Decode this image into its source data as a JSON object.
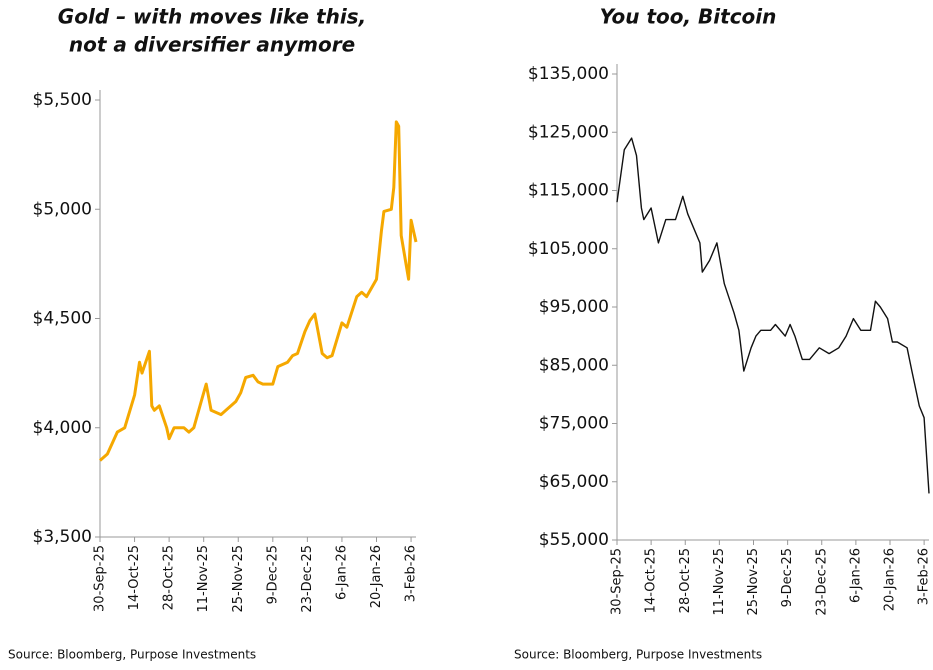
{
  "chart_data": [
    {
      "type": "line",
      "title": [
        "Gold – with moves like this,",
        "not a diversifier anymore"
      ],
      "source": "Source: Bloomberg, Purpose Investments",
      "xlim": [
        "2025-09-30",
        "2026-02-05"
      ],
      "xticks": [
        {
          "value": "2025-09-30",
          "label": "30-Sep-25"
        },
        {
          "value": "2025-10-14",
          "label": "14-Oct-25"
        },
        {
          "value": "2025-10-28",
          "label": "28-Oct-25"
        },
        {
          "value": "2025-11-11",
          "label": "11-Nov-25"
        },
        {
          "value": "2025-11-25",
          "label": "25-Nov-25"
        },
        {
          "value": "2025-12-09",
          "label": "9-Dec-25"
        },
        {
          "value": "2025-12-23",
          "label": "23-Dec-25"
        },
        {
          "value": "2026-01-06",
          "label": "6-Jan-26"
        },
        {
          "value": "2026-01-20",
          "label": "20-Jan-26"
        },
        {
          "value": "2026-02-03",
          "label": "3-Feb-26"
        }
      ],
      "ylim": [
        3500,
        5500
      ],
      "yticks": [
        {
          "value": 3500,
          "label": "$3,500"
        },
        {
          "value": 4000,
          "label": "$4,000"
        },
        {
          "value": 4500,
          "label": "$4,500"
        },
        {
          "value": 5000,
          "label": "$5,000"
        },
        {
          "value": 5500,
          "label": "$5,500"
        }
      ],
      "x": [
        "2025-09-30",
        "2025-10-03",
        "2025-10-07",
        "2025-10-10",
        "2025-10-14",
        "2025-10-16",
        "2025-10-17",
        "2025-10-20",
        "2025-10-21",
        "2025-10-22",
        "2025-10-24",
        "2025-10-27",
        "2025-10-28",
        "2025-10-30",
        "2025-11-03",
        "2025-11-05",
        "2025-11-07",
        "2025-11-10",
        "2025-11-12",
        "2025-11-14",
        "2025-11-18",
        "2025-11-20",
        "2025-11-24",
        "2025-11-26",
        "2025-11-28",
        "2025-12-01",
        "2025-12-03",
        "2025-12-05",
        "2025-12-09",
        "2025-12-11",
        "2025-12-15",
        "2025-12-17",
        "2025-12-19",
        "2025-12-22",
        "2025-12-24",
        "2025-12-26",
        "2025-12-29",
        "2025-12-31",
        "2026-01-02",
        "2026-01-06",
        "2026-01-08",
        "2026-01-12",
        "2026-01-14",
        "2026-01-16",
        "2026-01-20",
        "2026-01-22",
        "2026-01-23",
        "2026-01-26",
        "2026-01-27",
        "2026-01-28",
        "2026-01-29",
        "2026-01-30",
        "2026-02-02",
        "2026-02-03",
        "2026-02-04",
        "2026-02-05"
      ],
      "series": [
        {
          "name": "Gold",
          "color": "#f5a800",
          "values": [
            3850,
            3880,
            3980,
            4000,
            4150,
            4300,
            4250,
            4350,
            4100,
            4080,
            4100,
            4000,
            3950,
            4000,
            4000,
            3980,
            4000,
            4120,
            4200,
            4080,
            4060,
            4080,
            4120,
            4160,
            4230,
            4240,
            4210,
            4200,
            4200,
            4280,
            4300,
            4330,
            4340,
            4440,
            4490,
            4520,
            4340,
            4320,
            4330,
            4480,
            4460,
            4600,
            4620,
            4600,
            4680,
            4900,
            4990,
            5000,
            5100,
            5400,
            5380,
            4880,
            4680,
            4950,
            4900,
            4850
          ]
        }
      ]
    },
    {
      "type": "line",
      "title": [
        "You too, Bitcoin"
      ],
      "source": "Source: Bloomberg, Purpose Investments",
      "xlim": [
        "2025-09-30",
        "2026-02-05"
      ],
      "xticks": [
        {
          "value": "2025-09-30",
          "label": "30-Sep-25"
        },
        {
          "value": "2025-10-14",
          "label": "14-Oct-25"
        },
        {
          "value": "2025-10-28",
          "label": "28-Oct-25"
        },
        {
          "value": "2025-11-11",
          "label": "11-Nov-25"
        },
        {
          "value": "2025-11-25",
          "label": "25-Nov-25"
        },
        {
          "value": "2025-12-09",
          "label": "9-Dec-25"
        },
        {
          "value": "2025-12-23",
          "label": "23-Dec-25"
        },
        {
          "value": "2026-01-06",
          "label": "6-Jan-26"
        },
        {
          "value": "2026-01-20",
          "label": "20-Jan-26"
        },
        {
          "value": "2026-02-03",
          "label": "3-Feb-26"
        }
      ],
      "ylim": [
        55000,
        135000
      ],
      "yticks": [
        {
          "value": 55000,
          "label": "$55,000"
        },
        {
          "value": 65000,
          "label": "$65,000"
        },
        {
          "value": 75000,
          "label": "$75,000"
        },
        {
          "value": 85000,
          "label": "$85,000"
        },
        {
          "value": 95000,
          "label": "$95,000"
        },
        {
          "value": 105000,
          "label": "$105,000"
        },
        {
          "value": 115000,
          "label": "$115,000"
        },
        {
          "value": 125000,
          "label": "$125,000"
        },
        {
          "value": 135000,
          "label": "$135,000"
        }
      ],
      "x": [
        "2025-09-30",
        "2025-10-03",
        "2025-10-06",
        "2025-10-08",
        "2025-10-10",
        "2025-10-11",
        "2025-10-14",
        "2025-10-17",
        "2025-10-20",
        "2025-10-24",
        "2025-10-27",
        "2025-10-29",
        "2025-11-03",
        "2025-11-04",
        "2025-11-07",
        "2025-11-10",
        "2025-11-13",
        "2025-11-17",
        "2025-11-19",
        "2025-11-21",
        "2025-11-24",
        "2025-11-26",
        "2025-11-28",
        "2025-12-02",
        "2025-12-04",
        "2025-12-08",
        "2025-12-10",
        "2025-12-12",
        "2025-12-15",
        "2025-12-18",
        "2025-12-22",
        "2025-12-26",
        "2025-12-30",
        "2026-01-02",
        "2026-01-05",
        "2026-01-08",
        "2026-01-12",
        "2026-01-14",
        "2026-01-16",
        "2026-01-19",
        "2026-01-21",
        "2026-01-23",
        "2026-01-27",
        "2026-01-29",
        "2026-02-01",
        "2026-02-03",
        "2026-02-05"
      ],
      "series": [
        {
          "name": "Bitcoin",
          "color": "#111111",
          "values": [
            113000,
            122000,
            124000,
            121000,
            112000,
            110000,
            112000,
            106000,
            110000,
            110000,
            114000,
            111000,
            106000,
            101000,
            103000,
            106000,
            99000,
            94000,
            91000,
            84000,
            88000,
            90000,
            91000,
            91000,
            92000,
            90000,
            92000,
            90000,
            86000,
            86000,
            88000,
            87000,
            88000,
            90000,
            93000,
            91000,
            91000,
            96000,
            95000,
            93000,
            89000,
            89000,
            88000,
            84000,
            78000,
            76000,
            63000
          ]
        }
      ]
    }
  ]
}
